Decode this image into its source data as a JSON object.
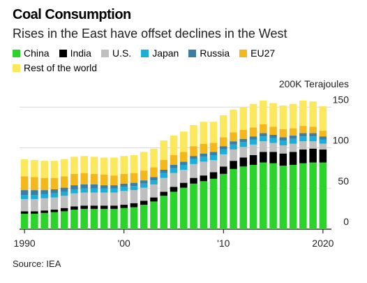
{
  "title": "Coal Consumption",
  "subtitle": "Rises in the East have offset declines in the West",
  "source": "Source: IEA",
  "chart_data": {
    "type": "bar",
    "stacked": true,
    "unit_label": "200K Terajoules",
    "x": [
      1990,
      1991,
      1992,
      1993,
      1994,
      1995,
      1996,
      1997,
      1998,
      1999,
      2000,
      2001,
      2002,
      2003,
      2004,
      2005,
      2006,
      2007,
      2008,
      2009,
      2010,
      2011,
      2012,
      2013,
      2014,
      2015,
      2016,
      2017,
      2018,
      2019,
      2020
    ],
    "x_tick_labels": [
      {
        "year": 1990,
        "label": "1990"
      },
      {
        "year": 2000,
        "label": "'00"
      },
      {
        "year": 2010,
        "label": "'10"
      },
      {
        "year": 2020,
        "label": "2020"
      }
    ],
    "y_ticks": [
      0,
      50,
      100,
      150
    ],
    "ylim": [
      0,
      170
    ],
    "series": [
      {
        "name": "China",
        "color": "#2ad42a",
        "values": [
          19,
          19,
          20,
          21,
          22,
          24,
          25,
          25,
          25,
          25,
          26,
          27,
          30,
          34,
          41,
          46,
          51,
          56,
          59,
          62,
          68,
          74,
          77,
          79,
          82,
          81,
          78,
          79,
          81,
          82,
          82
        ]
      },
      {
        "name": "India",
        "color": "#000000",
        "values": [
          3,
          3,
          3,
          3,
          4,
          4,
          4,
          4,
          4,
          4,
          4,
          5,
          5,
          5,
          5,
          6,
          6,
          7,
          7,
          8,
          9,
          10,
          11,
          12,
          13,
          14,
          15,
          16,
          17,
          17,
          16
        ]
      },
      {
        "name": "U.S.",
        "color": "#bfbfbf",
        "values": [
          15,
          15,
          15,
          15,
          15,
          16,
          16,
          16,
          16,
          16,
          17,
          16,
          16,
          16,
          17,
          17,
          16,
          17,
          17,
          15,
          15,
          14,
          13,
          13,
          13,
          11,
          10,
          10,
          10,
          9,
          7
        ]
      },
      {
        "name": "Japan",
        "color": "#1aaed8",
        "values": [
          5,
          5,
          5,
          5,
          5,
          5,
          5,
          5,
          5,
          5,
          5,
          5,
          5,
          5,
          6,
          6,
          6,
          6,
          6,
          6,
          6,
          6,
          6,
          6,
          6,
          6,
          6,
          6,
          6,
          6,
          5
        ]
      },
      {
        "name": "Russia",
        "color": "#3a7fa3",
        "values": [
          6,
          6,
          5,
          5,
          5,
          5,
          5,
          5,
          4,
          4,
          4,
          4,
          4,
          4,
          4,
          4,
          4,
          4,
          4,
          4,
          4,
          4,
          4,
          4,
          4,
          4,
          4,
          4,
          4,
          4,
          4
        ]
      },
      {
        "name": "EU27",
        "color": "#f5b81b",
        "values": [
          17,
          16,
          15,
          14,
          14,
          14,
          14,
          13,
          13,
          12,
          12,
          12,
          12,
          12,
          12,
          12,
          12,
          12,
          12,
          11,
          11,
          11,
          11,
          11,
          11,
          10,
          10,
          9,
          9,
          8,
          7
        ]
      },
      {
        "name": "Rest of the world",
        "color": "#fbe85d",
        "values": [
          21,
          21,
          21,
          21,
          21,
          21,
          21,
          21,
          21,
          22,
          22,
          22,
          23,
          23,
          24,
          24,
          25,
          26,
          27,
          26,
          27,
          28,
          28,
          29,
          29,
          29,
          29,
          30,
          31,
          31,
          30
        ]
      }
    ]
  }
}
